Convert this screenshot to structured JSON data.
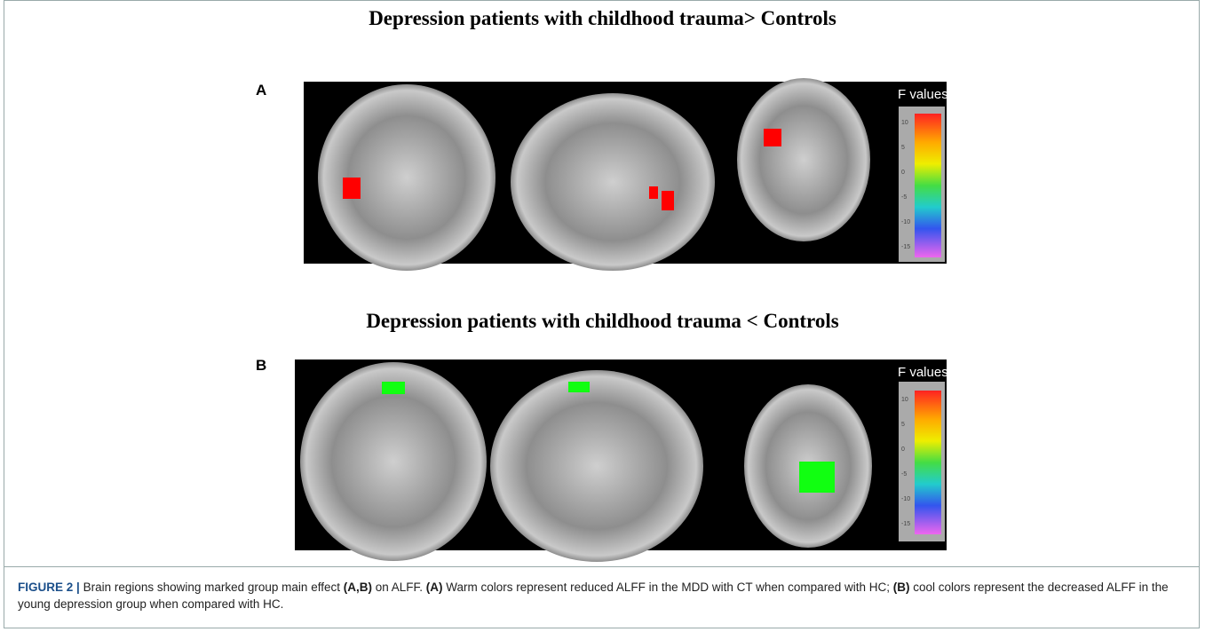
{
  "figure": {
    "panels": [
      {
        "title": "Depression patients with childhood trauma> Controls",
        "label": "A",
        "colorbar": {
          "title": "F values",
          "ticks": [
            10,
            5,
            0,
            -5,
            -10,
            -15
          ]
        }
      },
      {
        "title": "Depression patients with childhood trauma < Controls",
        "label": "B",
        "colorbar": {
          "title": "F values",
          "ticks": [
            10,
            5,
            0,
            -5,
            -10,
            -15
          ]
        }
      }
    ],
    "caption": {
      "label": "FIGURE 2 |",
      "segments": [
        {
          "text": "Brain regions showing marked group main effect ",
          "bold": false
        },
        {
          "text": "(A,B)",
          "bold": true
        },
        {
          "text": " on ALFF. ",
          "bold": false
        },
        {
          "text": "(A)",
          "bold": true
        },
        {
          "text": " Warm colors represent reduced ALFF in the MDD with CT when compared with HC; ",
          "bold": false
        },
        {
          "text": "(B)",
          "bold": true
        },
        {
          "text": " cool colors represent the decreased ALFF in the young depression group when compared with HC.",
          "bold": false
        }
      ]
    }
  }
}
